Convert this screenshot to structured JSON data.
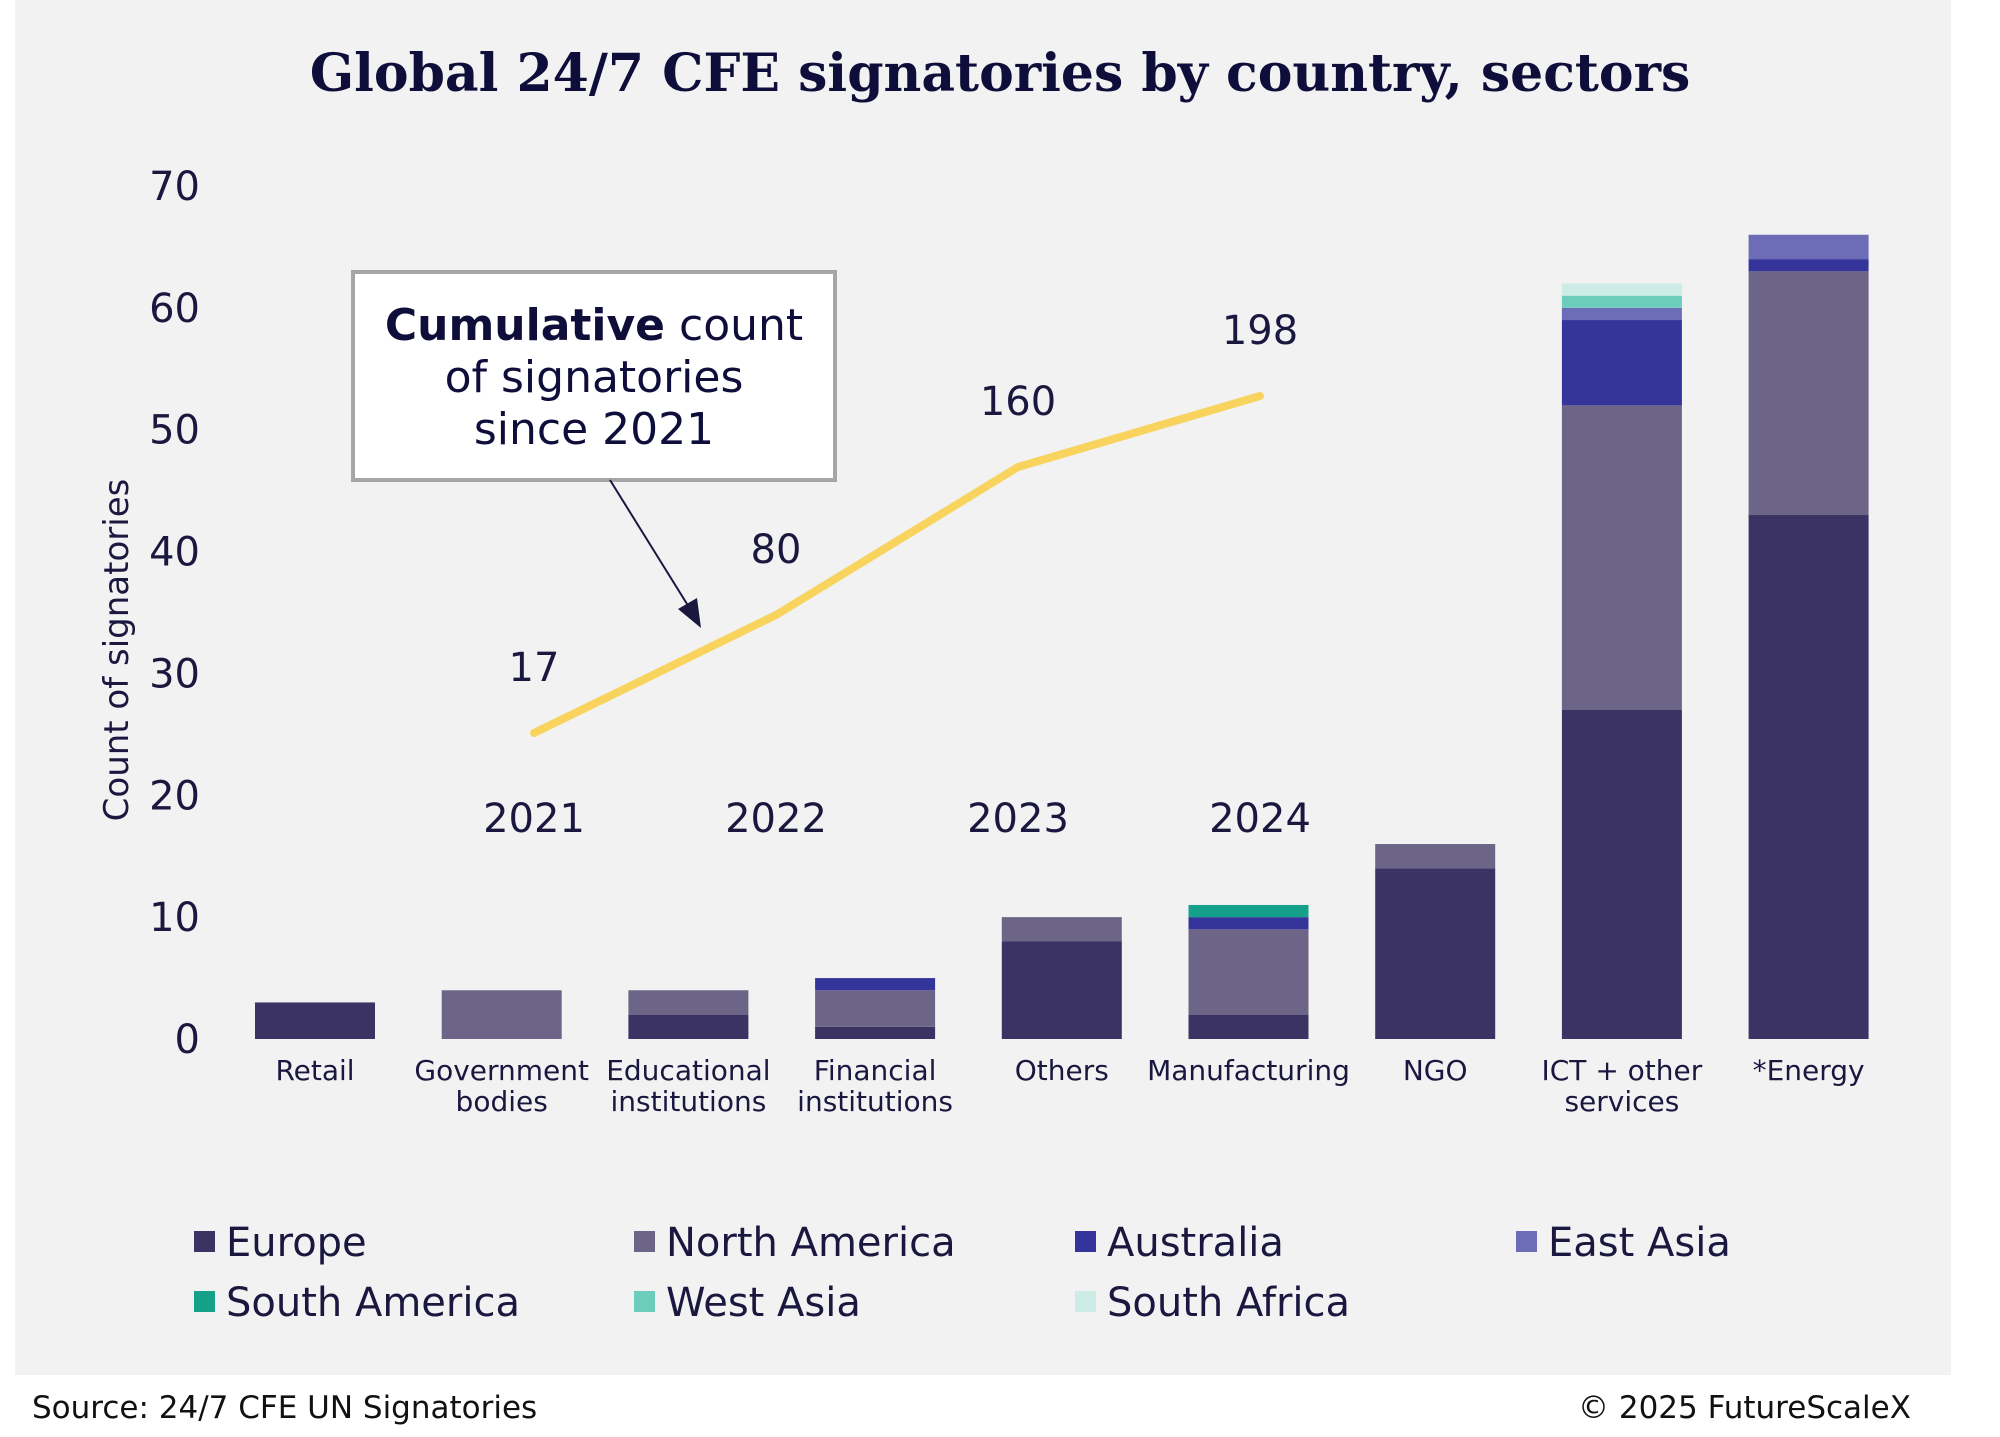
{
  "chart_data": {
    "type": "bar",
    "stacked": true,
    "title": "Global 24/7 CFE signatories by country, sectors",
    "ylabel": "Count of signatories",
    "ylim": [
      0,
      70
    ],
    "yticks": [
      "0",
      "10",
      "20",
      "30",
      "40",
      "50",
      "60",
      "70"
    ],
    "categories": [
      [
        "Retail"
      ],
      [
        "Government",
        "bodies"
      ],
      [
        "Educational",
        "institutions"
      ],
      [
        "Financial",
        "institutions"
      ],
      [
        "Others"
      ],
      [
        "Manufacturing"
      ],
      [
        "NGO"
      ],
      [
        "ICT + other",
        "services"
      ],
      [
        "*Energy"
      ]
    ],
    "series": [
      {
        "name": "Europe",
        "color": "#3b3363",
        "values": [
          3,
          0,
          2,
          1,
          8,
          2,
          14,
          27,
          43
        ]
      },
      {
        "name": "North America",
        "color": "#6d6587",
        "values": [
          0,
          4,
          2,
          3,
          2,
          7,
          2,
          25,
          20
        ]
      },
      {
        "name": "Australia",
        "color": "#34349a",
        "values": [
          0,
          0,
          0,
          1,
          0,
          1,
          0,
          7,
          1
        ]
      },
      {
        "name": "East Asia",
        "color": "#6c6cb7",
        "values": [
          0,
          0,
          0,
          0,
          0,
          0,
          0,
          1,
          2
        ]
      },
      {
        "name": "South America",
        "color": "#15a08a",
        "values": [
          0,
          0,
          0,
          0,
          0,
          1,
          0,
          0,
          0
        ]
      },
      {
        "name": "West Asia",
        "color": "#6dcdbb",
        "values": [
          0,
          0,
          0,
          0,
          0,
          0,
          0,
          1,
          0
        ]
      },
      {
        "name": "South Africa",
        "color": "#cdece5",
        "values": [
          0,
          0,
          0,
          0,
          0,
          0,
          0,
          1,
          0
        ]
      }
    ],
    "legend_position": "bottom",
    "cumulative_line": {
      "color": "#f8d45e",
      "years": [
        "2021",
        "2022",
        "2023",
        "2024"
      ],
      "values": [
        17,
        80,
        160,
        198
      ],
      "labels": [
        "17",
        "80",
        "160",
        "198"
      ]
    },
    "annotation": {
      "bold": "Cumulative",
      "line1_rest": " count",
      "line2": "of signatories",
      "line3": "since 2021"
    }
  },
  "footer": {
    "source": "Source: 24/7 CFE UN Signatories",
    "copyright": "© 2025 FutureScaleX"
  }
}
